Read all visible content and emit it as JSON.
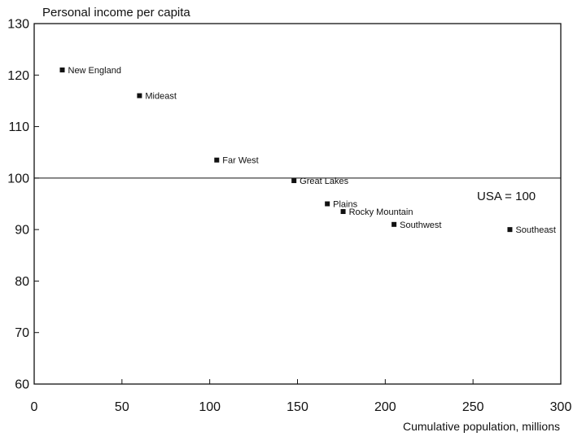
{
  "chart_data": {
    "type": "scatter",
    "title": "",
    "ylabel": "Personal income per capita",
    "xlabel": "Cumulative population, millions",
    "xlim": [
      0,
      300
    ],
    "ylim": [
      60,
      130
    ],
    "xticks": [
      0,
      50,
      100,
      150,
      200,
      250,
      300
    ],
    "yticks": [
      60,
      70,
      80,
      90,
      100,
      110,
      120,
      130
    ],
    "grid": false,
    "reference_line": {
      "y": 100
    },
    "annotation": "USA = 100",
    "points": [
      {
        "label": "New England",
        "x": 16,
        "y": 121
      },
      {
        "label": "Mideast",
        "x": 60,
        "y": 116
      },
      {
        "label": "Far West",
        "x": 104,
        "y": 103.5
      },
      {
        "label": "Great Lakes",
        "x": 148,
        "y": 99.5
      },
      {
        "label": "Plains",
        "x": 167,
        "y": 95
      },
      {
        "label": "Rocky Mountain",
        "x": 176,
        "y": 93.5
      },
      {
        "label": "Southwest",
        "x": 205,
        "y": 91
      },
      {
        "label": "Southeast",
        "x": 271,
        "y": 90
      }
    ]
  }
}
